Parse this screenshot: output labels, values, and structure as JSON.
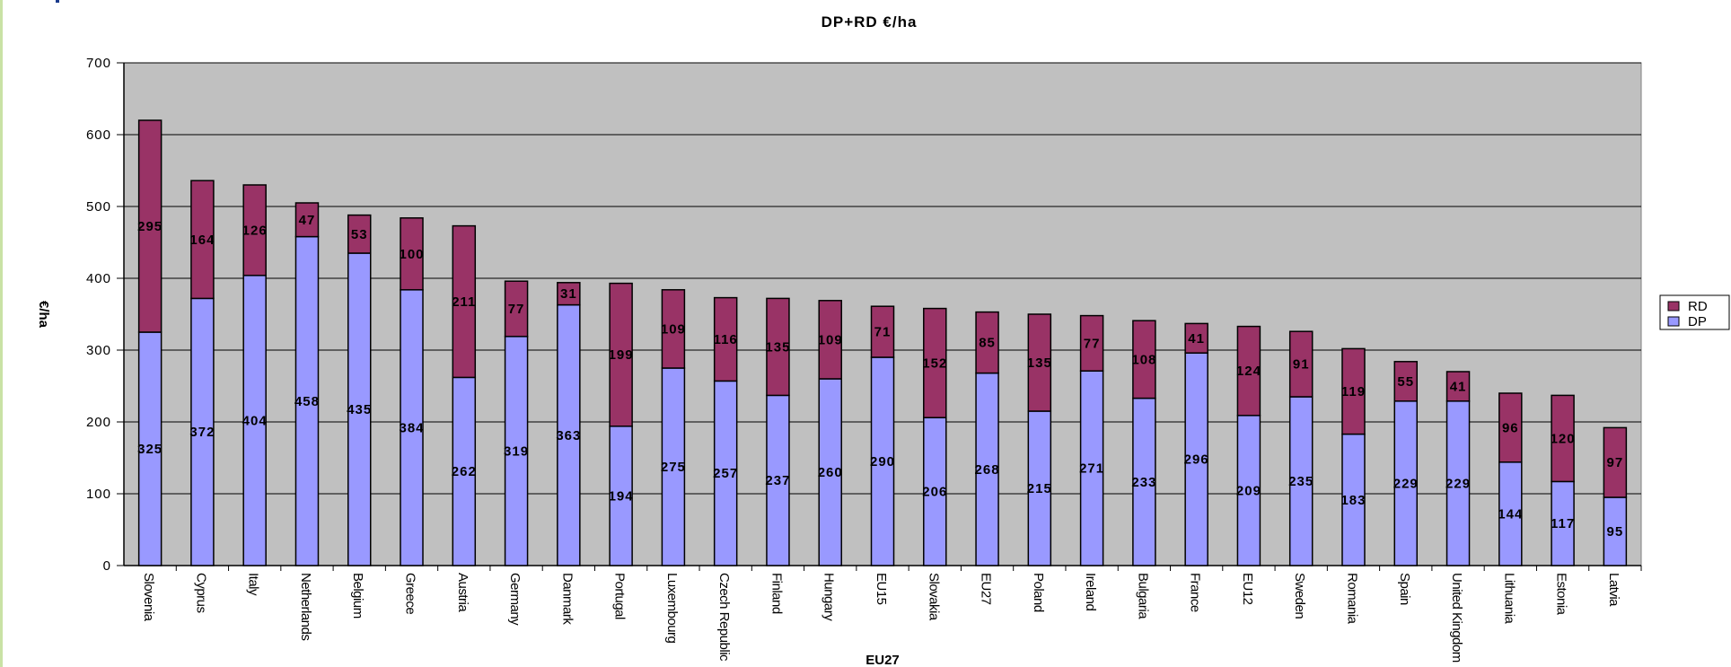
{
  "chart_data": {
    "type": "bar",
    "stacked": true,
    "title": "DP+RD €/ha",
    "xlabel": "EU27",
    "ylabel": "€/ha",
    "ylim": [
      0,
      700
    ],
    "yticks": [
      "0",
      "100",
      "200",
      "300",
      "400",
      "500",
      "600",
      "700"
    ],
    "grid": true,
    "legend_position": "right",
    "categories": [
      "Slovenia",
      "Cyprus",
      "Italy",
      "Netherlands",
      "Belgium",
      "Greece",
      "Austria",
      "Germany",
      "Danmark",
      "Portugal",
      "Luxembourg",
      "Czech Republic",
      "Finland",
      "Hungary",
      "EU15",
      "Slovakia",
      "EU27",
      "Poland",
      "Ireland",
      "Bulgaria",
      "France",
      "EU12",
      "Sweden",
      "Romania",
      "Spain",
      "United Kingdom",
      "Lithuania",
      "Estonia",
      "Latvia"
    ],
    "series": [
      {
        "name": "DP",
        "color": "#9999ff",
        "values": [
          325,
          372,
          404,
          458,
          435,
          384,
          262,
          319,
          363,
          194,
          275,
          257,
          237,
          260,
          290,
          206,
          268,
          215,
          271,
          233,
          296,
          209,
          235,
          183,
          229,
          229,
          144,
          117,
          95
        ]
      },
      {
        "name": "RD",
        "color": "#993366",
        "values": [
          295,
          164,
          126,
          47,
          53,
          100,
          211,
          77,
          31,
          199,
          109,
          116,
          135,
          109,
          71,
          152,
          85,
          135,
          77,
          108,
          41,
          124,
          91,
          119,
          55,
          41,
          96,
          120,
          97
        ]
      }
    ],
    "legend": [
      {
        "name": "RD",
        "color": "#993366"
      },
      {
        "name": "DP",
        "color": "#9999ff"
      }
    ],
    "colors": {
      "plot_background": "#c0c0c0",
      "gridline": "#000000",
      "bar_outline": "#000000"
    }
  }
}
